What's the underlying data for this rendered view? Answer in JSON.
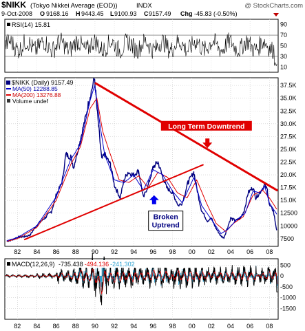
{
  "header": {
    "symbol": "$NIKK",
    "name": "(Tokyo Nikkei Average (EOD))",
    "exchange": "INDX",
    "watermark": "@ StockCharts.com",
    "date": "9-Oct-2008",
    "open_label": "O",
    "open": "9168.16",
    "high_label": "H",
    "high": "9443.45",
    "low_label": "L",
    "low": "9100.93",
    "close_label": "C",
    "close": "9157.49",
    "chg_label": "Chg",
    "chg": "-45.83 (-0.50%)"
  },
  "colors": {
    "price": "#000080",
    "ma50": "#0000cc",
    "ma200": "#e00000",
    "trendline": "#e00000",
    "annotation_text": "#ffffff",
    "annotation_bg": "#e00000",
    "arrow_down": "#e00000",
    "arrow_up": "#0000ee",
    "macd_line": "#000000",
    "macd_signal": "#e00000",
    "macd_hist": "#2aa0d0"
  },
  "chart_data": [
    {
      "type": "line",
      "panel": "rsi",
      "title": "RSI(14) 15.81",
      "ylim": [
        0,
        100
      ],
      "y_ticks": [
        "90",
        "70",
        "50",
        "30",
        "10"
      ],
      "reference_lines": [
        70,
        30
      ],
      "last_value": 15.81
    },
    {
      "type": "line",
      "panel": "price",
      "legend": {
        "price": "$NIKK (Daily) 9157.49",
        "ma50": "MA(50) 12288.85",
        "ma200": "MA(200) 13276.88",
        "volume": "Volume undef"
      },
      "ylim": [
        6000,
        39000
      ],
      "y_ticks": [
        "37.5K",
        "35.0K",
        "32.5K",
        "30.0K",
        "27.5K",
        "25.0K",
        "22.5K",
        "20.0K",
        "17.5K",
        "15.0K",
        "12500",
        "10000",
        "7500"
      ],
      "x_ticks": [
        "82",
        "84",
        "86",
        "88",
        "90",
        "92",
        "94",
        "96",
        "98",
        "00",
        "02",
        "04",
        "06",
        "08"
      ],
      "series": [
        {
          "name": "$NIKK",
          "x": [
            1980.9,
            1981.5,
            1982,
            1982.7,
            1983.3,
            1984,
            1984.8,
            1985.5,
            1986,
            1986.6,
            1987,
            1987.5,
            1987.8,
            1988.5,
            1989,
            1989.5,
            1989.97,
            1990.2,
            1990.4,
            1990.7,
            1991,
            1991.6,
            1992,
            1992.6,
            1993,
            1993.4,
            1994,
            1994.5,
            1995,
            1995.5,
            1996,
            1996.5,
            1997,
            1997.4,
            1998,
            1998.6,
            1999,
            1999.6,
            2000.2,
            2000.6,
            2001,
            2001.6,
            2002,
            2002.5,
            2003,
            2003.3,
            2003.7,
            2004,
            2004.5,
            2005,
            2005.4,
            2005.8,
            2006.3,
            2006.6,
            2007,
            2007.5,
            2007.8,
            2008,
            2008.4,
            2008.75
          ],
          "y": [
            7000,
            7300,
            7800,
            7900,
            8200,
            10200,
            11500,
            12800,
            16000,
            18500,
            24000,
            23500,
            21500,
            27000,
            31000,
            35500,
            38900,
            33000,
            29000,
            23000,
            24000,
            22000,
            18000,
            15500,
            19000,
            20500,
            20000,
            20800,
            15500,
            18000,
            21500,
            22500,
            19500,
            17500,
            16500,
            14000,
            14500,
            18500,
            20500,
            16500,
            13000,
            11000,
            11500,
            9500,
            8000,
            7700,
            9800,
            11500,
            11000,
            11500,
            13000,
            16500,
            17500,
            15500,
            16500,
            18000,
            17000,
            14000,
            13000,
            9157
          ]
        },
        {
          "name": "MA(50)",
          "x": [
            1980.9,
            1982,
            1984,
            1986,
            1987.5,
            1988.5,
            1989.5,
            1989.97,
            1990.5,
            1991,
            1992,
            1993,
            1994,
            1995,
            1996,
            1997,
            1998,
            1999,
            2000.2,
            2001,
            2002,
            2003,
            2003.7,
            2004.5,
            2005.5,
            2006.3,
            2007,
            2007.5,
            2008,
            2008.75
          ],
          "y": [
            7100,
            7700,
            10000,
            15700,
            23000,
            26000,
            34500,
            37500,
            30000,
            24000,
            19000,
            18500,
            20000,
            17000,
            21000,
            20000,
            16800,
            14500,
            19500,
            14000,
            11300,
            8500,
            9300,
            11000,
            12500,
            16800,
            16500,
            17800,
            14500,
            12288.85
          ]
        },
        {
          "name": "MA(200)",
          "x": [
            1980.9,
            1982,
            1984,
            1986,
            1987.5,
            1988.5,
            1989.5,
            1990.2,
            1990.8,
            1991.5,
            1992.5,
            1993.5,
            1994.5,
            1995.5,
            1996.5,
            1997.5,
            1998.5,
            1999.5,
            2000.5,
            2001.5,
            2002.5,
            2003.5,
            2004.3,
            2005.3,
            2006.3,
            2007.3,
            2008,
            2008.75
          ],
          "y": [
            7000,
            7500,
            9700,
            15000,
            22000,
            25500,
            33000,
            35000,
            28500,
            24500,
            19000,
            18500,
            19800,
            17500,
            20500,
            19500,
            16500,
            15500,
            19000,
            14500,
            10500,
            8900,
            10500,
            11800,
            16000,
            17000,
            15500,
            13276.88
          ]
        }
      ],
      "trendlines": [
        {
          "name": "Long Term Downtrend",
          "x": [
            1990,
            2008.85
          ],
          "y": [
            38000,
            16900
          ]
        },
        {
          "name": "Broken Uptrend",
          "x": [
            1982.7,
            2001.2
          ],
          "y": [
            7300,
            22000
          ]
        }
      ],
      "annotations": [
        {
          "text": "Long Term Downtrend",
          "x": 2001.5,
          "y": 29200,
          "arrow": "down",
          "arrow_x": 2001.6,
          "arrow_y": 25500
        },
        {
          "text_lines": [
            "Broken",
            "Uptrend"
          ],
          "x": 1997.3,
          "y": 11300,
          "arrow": "up",
          "arrow_x": 1996.1,
          "arrow_y": 16000
        }
      ]
    },
    {
      "type": "line",
      "panel": "macd",
      "title": "MACD(12,26,9)",
      "values": {
        "macd": "-735.438",
        "signal": "-494.136",
        "histogram": "-241.302"
      },
      "ylim": [
        -2000,
        800
      ],
      "y_ticks": [
        "500",
        "0",
        "-500",
        "-1000",
        "-1500"
      ],
      "x_ticks": [
        "82",
        "84",
        "86",
        "88",
        "90",
        "92",
        "94",
        "96",
        "98",
        "00",
        "02",
        "04",
        "06",
        "08"
      ]
    }
  ]
}
